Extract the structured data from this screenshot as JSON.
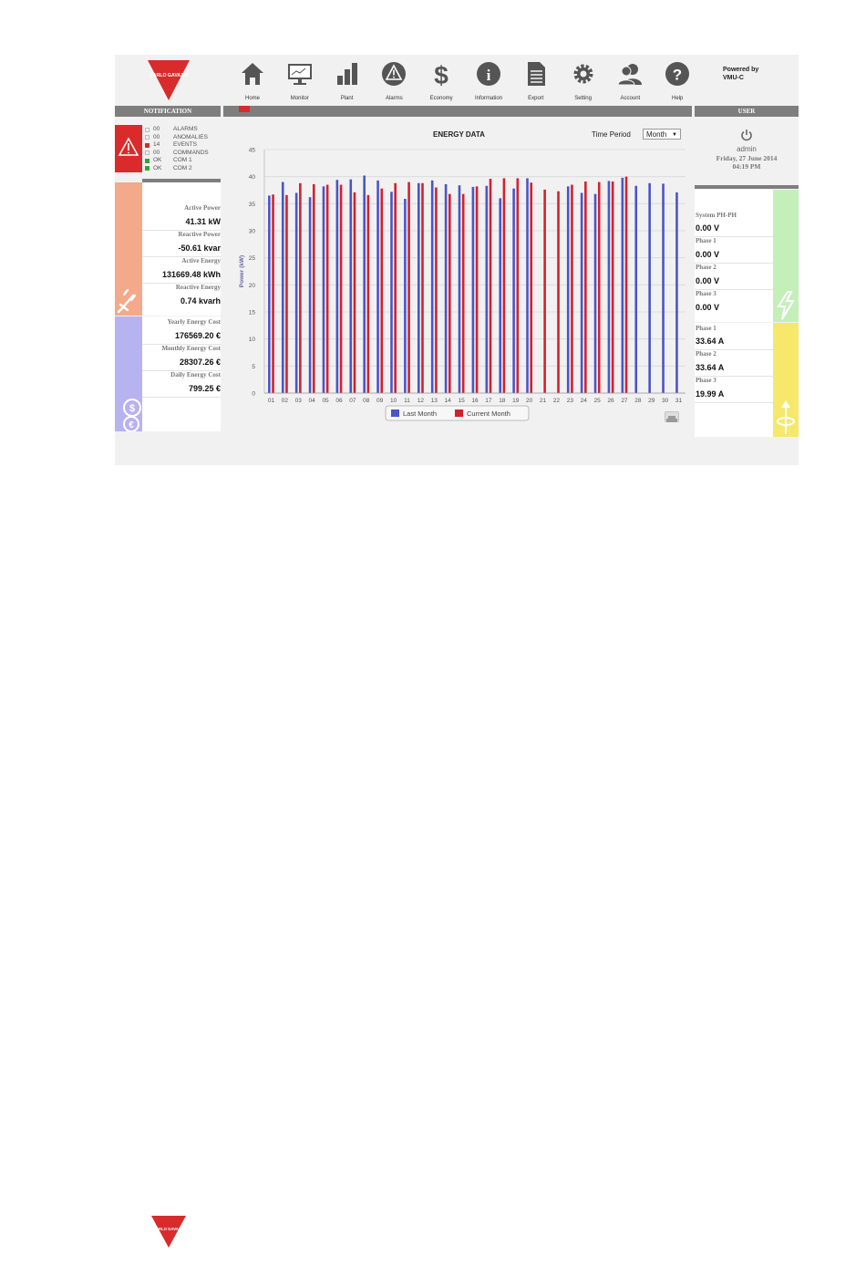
{
  "brand": {
    "logo_text": "CARLO GAVAZZI",
    "color": "#d92b2b"
  },
  "header": {
    "nav": [
      {
        "label": "Home",
        "icon": "home-icon"
      },
      {
        "label": "Monitor",
        "icon": "monitor-icon"
      },
      {
        "label": "Plant",
        "icon": "bar-chart-icon"
      },
      {
        "label": "Alarms",
        "icon": "warning-icon"
      },
      {
        "label": "Economy",
        "icon": "dollar-icon"
      },
      {
        "label": "Information",
        "icon": "info-icon"
      },
      {
        "label": "Export",
        "icon": "document-icon"
      },
      {
        "label": "Setting",
        "icon": "gear-icon"
      },
      {
        "label": "Account",
        "icon": "users-icon"
      },
      {
        "label": "Help",
        "icon": "help-icon"
      }
    ],
    "powered_by": "Powered by",
    "product": "VMU-C"
  },
  "notification": {
    "title": "NOTIFICATION",
    "items": [
      {
        "status": "empty",
        "code": "00",
        "label": "ALARMS"
      },
      {
        "status": "empty",
        "code": "00",
        "label": "ANOMALIES"
      },
      {
        "status": "red",
        "code": "14",
        "label": "EVENTS"
      },
      {
        "status": "empty",
        "code": "00",
        "label": "COMMANDS"
      },
      {
        "status": "green",
        "code": "OK",
        "label": "COM 1"
      },
      {
        "status": "green",
        "code": "OK",
        "label": "COM 2"
      }
    ]
  },
  "energy": {
    "active_power_label": "Active Power",
    "active_power": "41.31 kW",
    "reactive_power_label": "Reactive Power",
    "reactive_power": "-50.61 kvar",
    "active_energy_label": "Active Energy",
    "active_energy": "131669.48 kWh",
    "reactive_energy_label": "Reactive Energy",
    "reactive_energy": "0.74 kvarh"
  },
  "cost": {
    "yearly_label": "Yearly Energy Cost",
    "yearly": "176569.20 €",
    "monthly_label": "Monthly Energy Cost",
    "monthly": "28307.26 €",
    "daily_label": "Daily Energy Cost",
    "daily": "799.25 €"
  },
  "user": {
    "title": "USER",
    "name": "admin",
    "date": "Friday, 27 June 2014",
    "time": "04:19 PM"
  },
  "voltage": {
    "system_label": "System PH-PH",
    "system": "0.00 V",
    "phase1_label": "Phase 1",
    "phase1": "0.00 V",
    "phase2_label": "Phase 2",
    "phase2": "0.00 V",
    "phase3_label": "Phase 3",
    "phase3": "0.00 V"
  },
  "current": {
    "phase1_label": "Phase 1",
    "phase1": "33.64 A",
    "phase2_label": "Phase 2",
    "phase2": "33.64 A",
    "phase3_label": "Phase 3",
    "phase3": "19.99 A"
  },
  "panel_colors": {
    "notification": "#d92b2b",
    "energy": "#f4a98a",
    "cost": "#b7b3ee",
    "voltage": "#c4efb8",
    "current": "#f6e86a"
  },
  "time_period": {
    "label": "Time Period",
    "value": "Month"
  },
  "chart_data": {
    "type": "bar",
    "title": "ENERGY DATA",
    "ylabel": "Power (kW)",
    "xlabel": "",
    "ylim": [
      0,
      45
    ],
    "yticks": [
      0,
      5,
      10,
      15,
      20,
      25,
      30,
      35,
      40,
      45
    ],
    "grid": true,
    "legend_position": "bottom",
    "categories": [
      "01",
      "02",
      "03",
      "04",
      "05",
      "06",
      "07",
      "08",
      "09",
      "10",
      "11",
      "12",
      "13",
      "14",
      "15",
      "16",
      "17",
      "18",
      "19",
      "20",
      "21",
      "22",
      "23",
      "24",
      "25",
      "26",
      "27",
      "28",
      "29",
      "30",
      "31"
    ],
    "series": [
      {
        "name": "Last Month",
        "color": "#4a55c8",
        "values": [
          36.5,
          39.0,
          37.0,
          36.2,
          38.2,
          39.4,
          39.5,
          40.2,
          39.3,
          37.2,
          35.9,
          38.8,
          39.3,
          38.6,
          38.4,
          38.1,
          38.3,
          36.0,
          37.8,
          39.7,
          null,
          null,
          38.2,
          37.0,
          36.8,
          39.2,
          39.8,
          38.3,
          38.8,
          38.7,
          37.1
        ]
      },
      {
        "name": "Current Month",
        "color": "#d4212b",
        "values": [
          36.7,
          36.6,
          38.8,
          38.6,
          38.5,
          38.5,
          37.1,
          36.6,
          37.8,
          38.8,
          39.0,
          38.8,
          38.0,
          36.8,
          36.8,
          38.2,
          39.6,
          39.7,
          39.7,
          38.9,
          37.6,
          37.3,
          38.5,
          39.1,
          39.0,
          39.1,
          40.0,
          null,
          null,
          null,
          null
        ]
      }
    ]
  },
  "footer": {
    "logo_text": "CARLO GAVAZZI"
  }
}
